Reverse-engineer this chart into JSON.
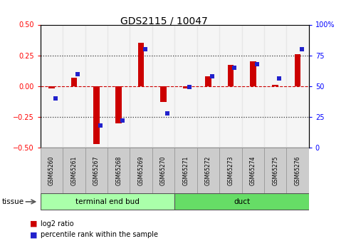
{
  "title": "GDS2115 / 10047",
  "samples": [
    "GSM65260",
    "GSM65261",
    "GSM65267",
    "GSM65268",
    "GSM65269",
    "GSM65270",
    "GSM65271",
    "GSM65272",
    "GSM65273",
    "GSM65274",
    "GSM65275",
    "GSM65276"
  ],
  "log2_ratio": [
    -0.02,
    0.07,
    -0.47,
    -0.3,
    0.35,
    -0.13,
    -0.02,
    0.08,
    0.17,
    0.2,
    0.01,
    0.26
  ],
  "percentile_rank": [
    40,
    60,
    18,
    22,
    80,
    28,
    49,
    58,
    65,
    68,
    56,
    80
  ],
  "groups": [
    {
      "label": "terminal end bud",
      "start": 0,
      "end": 5,
      "color": "#90EE90"
    },
    {
      "label": "duct",
      "start": 6,
      "end": 11,
      "color": "#6BD66B"
    }
  ],
  "ylim_left": [
    -0.5,
    0.5
  ],
  "ylim_right": [
    0,
    100
  ],
  "yticks_left": [
    -0.5,
    -0.25,
    0.0,
    0.25,
    0.5
  ],
  "yticks_right": [
    0,
    25,
    50,
    75,
    100
  ],
  "bar_color_red": "#CC0000",
  "bar_color_blue": "#2222CC",
  "dotted_line_color": "#333333",
  "dashed_line_color": "#CC0000",
  "tissue_label": "tissue",
  "legend_log2": "log2 ratio",
  "legend_pct": "percentile rank within the sample",
  "sample_bg_color": "#CCCCCC",
  "group1_color": "#AAFFAA",
  "group2_color": "#66DD66",
  "bar_width": 0.5
}
